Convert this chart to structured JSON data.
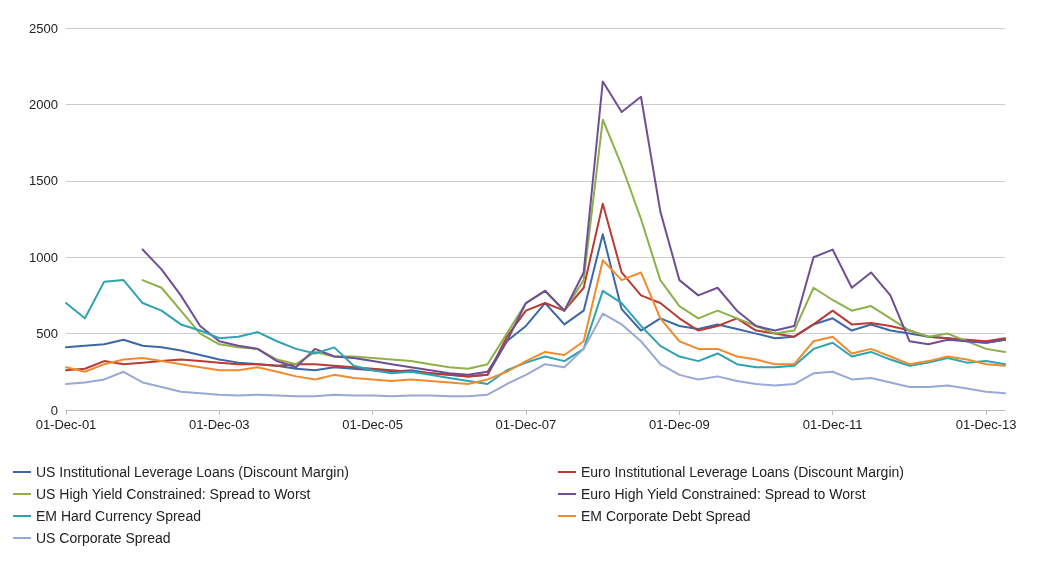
{
  "chart_data": {
    "type": "line",
    "x": [
      "2001-12-01",
      "2002-03-01",
      "2002-06-01",
      "2002-09-01",
      "2002-12-01",
      "2003-03-01",
      "2003-06-01",
      "2003-09-01",
      "2003-12-01",
      "2004-03-01",
      "2004-06-01",
      "2004-09-01",
      "2004-12-01",
      "2005-03-01",
      "2005-06-01",
      "2005-09-01",
      "2005-12-01",
      "2006-03-01",
      "2006-06-01",
      "2006-09-01",
      "2006-12-01",
      "2007-03-01",
      "2007-06-01",
      "2007-09-01",
      "2007-12-01",
      "2008-03-01",
      "2008-06-01",
      "2008-09-01",
      "2008-12-01",
      "2009-03-01",
      "2009-06-01",
      "2009-09-01",
      "2009-12-01",
      "2010-03-01",
      "2010-06-01",
      "2010-09-01",
      "2010-12-01",
      "2011-03-01",
      "2011-06-01",
      "2011-09-01",
      "2011-12-01",
      "2012-03-01",
      "2012-06-01",
      "2012-09-01",
      "2012-12-01",
      "2013-03-01",
      "2013-06-01",
      "2013-09-01",
      "2013-12-01",
      "2014-03-01"
    ],
    "series": [
      {
        "name": "US Institutional Leverage Loans (Discount Margin)",
        "color": "#3d68a8",
        "values": [
          410,
          420,
          430,
          460,
          420,
          410,
          390,
          360,
          330,
          310,
          300,
          290,
          270,
          260,
          280,
          270,
          260,
          250,
          260,
          240,
          230,
          220,
          230,
          450,
          550,
          700,
          560,
          650,
          1150,
          660,
          520,
          600,
          550,
          530,
          560,
          530,
          500,
          470,
          480,
          560,
          600,
          520,
          560,
          520,
          500,
          480,
          470,
          450,
          440,
          460
        ]
      },
      {
        "name": "Euro Institutional Leverage Loans (Discount Margin)",
        "color": "#b83b36",
        "values": [
          260,
          270,
          320,
          300,
          310,
          320,
          330,
          320,
          310,
          300,
          300,
          290,
          300,
          300,
          290,
          280,
          270,
          260,
          250,
          240,
          230,
          220,
          230,
          480,
          650,
          700,
          650,
          800,
          1350,
          900,
          750,
          700,
          600,
          520,
          550,
          600,
          520,
          500,
          480,
          560,
          650,
          560,
          570,
          550,
          520,
          480,
          470,
          460,
          450,
          470
        ]
      },
      {
        "name": "US High Yield Constrained: Spread to Worst",
        "color": "#8db04a",
        "values": [
          null,
          null,
          null,
          null,
          850,
          800,
          650,
          500,
          430,
          410,
          400,
          330,
          300,
          380,
          350,
          350,
          340,
          330,
          320,
          300,
          280,
          270,
          300,
          500,
          700,
          780,
          650,
          850,
          1900,
          1600,
          1250,
          850,
          680,
          600,
          650,
          600,
          550,
          500,
          520,
          800,
          720,
          650,
          680,
          600,
          520,
          480,
          500,
          450,
          400,
          380
        ]
      },
      {
        "name": "Euro High Yield Constrained: Spread to Worst",
        "color": "#6e4f96",
        "values": [
          null,
          null,
          null,
          null,
          1050,
          920,
          750,
          550,
          450,
          420,
          400,
          320,
          280,
          400,
          350,
          340,
          320,
          300,
          280,
          260,
          240,
          230,
          250,
          450,
          700,
          780,
          650,
          900,
          2150,
          1950,
          2050,
          1300,
          850,
          750,
          800,
          650,
          550,
          520,
          550,
          1000,
          1050,
          800,
          900,
          750,
          450,
          430,
          460,
          450,
          440,
          460
        ]
      },
      {
        "name": "EM Hard Currency Spread",
        "color": "#2fa3b0",
        "values": [
          700,
          600,
          840,
          850,
          700,
          650,
          560,
          520,
          470,
          480,
          510,
          450,
          400,
          370,
          410,
          290,
          260,
          240,
          250,
          230,
          210,
          190,
          170,
          260,
          310,
          350,
          320,
          400,
          780,
          700,
          550,
          420,
          350,
          320,
          370,
          300,
          280,
          280,
          290,
          400,
          440,
          350,
          380,
          330,
          290,
          310,
          340,
          310,
          320,
          300
        ]
      },
      {
        "name": "EM Corporate Debt Spread",
        "color": "#f08c2e",
        "values": [
          280,
          250,
          300,
          330,
          340,
          320,
          300,
          280,
          260,
          260,
          280,
          250,
          220,
          200,
          230,
          210,
          200,
          190,
          200,
          190,
          180,
          170,
          200,
          250,
          320,
          380,
          360,
          450,
          980,
          850,
          900,
          600,
          450,
          400,
          400,
          350,
          330,
          300,
          300,
          450,
          480,
          370,
          400,
          350,
          300,
          320,
          350,
          330,
          300,
          290
        ]
      },
      {
        "name": "US Corporate Spread",
        "color": "#9aa8d4",
        "values": [
          170,
          180,
          200,
          250,
          180,
          150,
          120,
          110,
          100,
          95,
          100,
          95,
          90,
          90,
          100,
          95,
          95,
          90,
          95,
          95,
          90,
          90,
          100,
          170,
          230,
          300,
          280,
          400,
          630,
          560,
          450,
          300,
          230,
          200,
          220,
          190,
          170,
          160,
          170,
          240,
          250,
          200,
          210,
          180,
          150,
          150,
          160,
          140,
          120,
          110
        ]
      }
    ],
    "xlim": [
      "2001-12-01",
      "2014-03-01"
    ],
    "xticks": [
      {
        "value": "2001-12-01",
        "label": "01-Dec-01"
      },
      {
        "value": "2003-12-01",
        "label": "01-Dec-03"
      },
      {
        "value": "2005-12-01",
        "label": "01-Dec-05"
      },
      {
        "value": "2007-12-01",
        "label": "01-Dec-07"
      },
      {
        "value": "2009-12-01",
        "label": "01-Dec-09"
      },
      {
        "value": "2011-12-01",
        "label": "01-Dec-11"
      },
      {
        "value": "2013-12-01",
        "label": "01-Dec-13"
      }
    ],
    "ylim": [
      0,
      2500
    ],
    "yticks": [
      0,
      500,
      1000,
      1500,
      2000,
      2500
    ],
    "grid": "y",
    "legend": "bottom",
    "marker": "none",
    "line_style": "solid"
  }
}
